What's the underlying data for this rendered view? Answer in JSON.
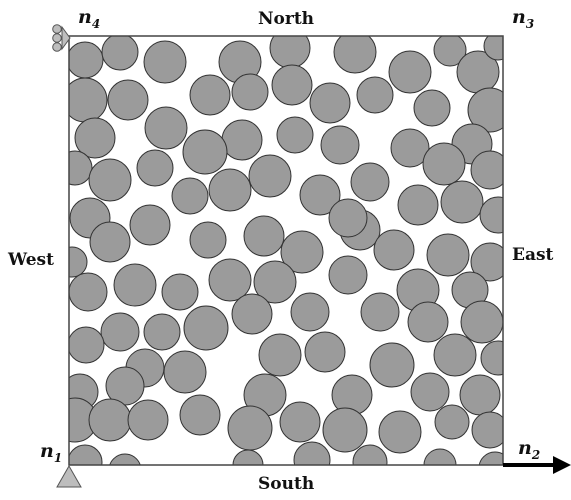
{
  "labels": {
    "north": "North",
    "south": "South",
    "west": "West",
    "east": "East"
  },
  "nodes": {
    "n1": {
      "base": "n",
      "sub": "1"
    },
    "n2": {
      "base": "n",
      "sub": "2"
    },
    "n3": {
      "base": "n",
      "sub": "3"
    },
    "n4": {
      "base": "n",
      "sub": "4"
    }
  },
  "colors": {
    "particle_fill": "#9b9b9b",
    "particle_stroke": "#333333",
    "border": "#444444",
    "support": "#bdbdbd",
    "arrow": "#000000"
  }
}
